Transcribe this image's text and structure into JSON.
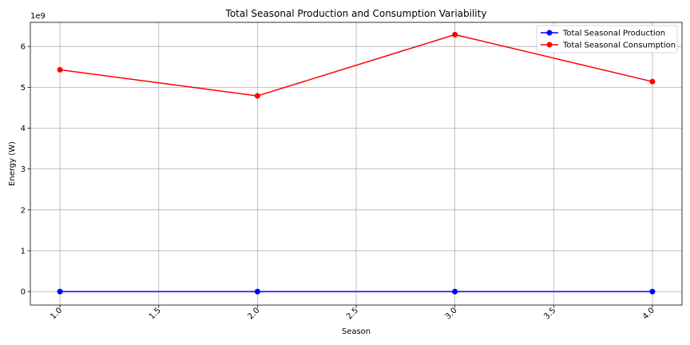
{
  "chart_data": {
    "type": "line",
    "title": "Total Seasonal Production and Consumption Variability",
    "xlabel": "Season",
    "ylabel": "Energy (W)",
    "y_offset_label": "1e9",
    "x": [
      1.0,
      2.0,
      3.0,
      4.0
    ],
    "series": [
      {
        "name": "Total Seasonal Production",
        "values": [
          0,
          0,
          0,
          0
        ],
        "color": "#0000ff"
      },
      {
        "name": "Total Seasonal Consumption",
        "values": [
          5430000000,
          4790000000,
          6290000000,
          5140000000
        ],
        "color": "#ff0000"
      }
    ],
    "xlim": [
      0.85,
      4.15
    ],
    "ylim": [
      -330000000,
      6590000000
    ],
    "xticks": [
      1.0,
      1.5,
      2.0,
      2.5,
      3.0,
      3.5,
      4.0
    ],
    "xtick_labels": [
      "1.0",
      "1.5",
      "2.0",
      "2.5",
      "3.0",
      "3.5",
      "4.0"
    ],
    "yticks": [
      0,
      1000000000,
      2000000000,
      3000000000,
      4000000000,
      5000000000,
      6000000000
    ],
    "ytick_labels": [
      "0",
      "1",
      "2",
      "3",
      "4",
      "5",
      "6"
    ],
    "grid": true,
    "legend_position": "top-right",
    "xtick_rotation": "45deg"
  }
}
